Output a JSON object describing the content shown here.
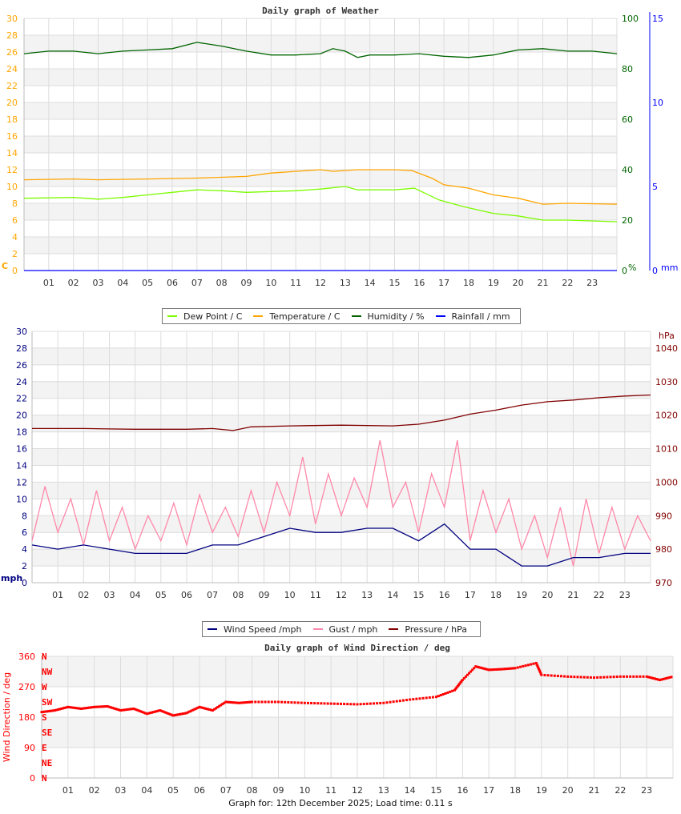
{
  "footer": {
    "text": "Graph for: 12th December 2025; Load time: 0.11 s"
  },
  "legends": {
    "weather": [
      {
        "label": "Dew Point / C",
        "color": "#7cfc00"
      },
      {
        "label": "Temperature / C",
        "color": "#ffa500"
      },
      {
        "label": "Humidity / %",
        "color": "#006400"
      },
      {
        "label": "Rainfall / mm",
        "color": "#0000ff"
      }
    ],
    "wind": [
      {
        "label": "Wind Speed /mph",
        "color": "#000080"
      },
      {
        "label": "Gust / mph",
        "color": "#ff88aa"
      },
      {
        "label": "Pressure / hPa",
        "color": "#800000"
      }
    ]
  },
  "chart_data": [
    {
      "type": "line",
      "title": "Daily graph of Weather",
      "x_ticks": [
        "01",
        "02",
        "03",
        "04",
        "05",
        "06",
        "07",
        "08",
        "09",
        "10",
        "11",
        "12",
        "13",
        "14",
        "15",
        "16",
        "17",
        "18",
        "19",
        "20",
        "21",
        "22",
        "23"
      ],
      "xlim": [
        0,
        24
      ],
      "grid": true,
      "legend_placement": "bottom",
      "y_left": {
        "unit": "C",
        "lim": [
          0,
          30
        ],
        "ticks": [
          "0",
          "2",
          "4",
          "6",
          "8",
          "10",
          "12",
          "14",
          "16",
          "18",
          "20",
          "22",
          "24",
          "26",
          "28",
          "30"
        ],
        "color": "#ffa500"
      },
      "y_right": {
        "unit": "%",
        "lim": [
          0,
          100
        ],
        "ticks": [
          "0",
          "20",
          "40",
          "60",
          "80",
          "100"
        ],
        "color": "#006400"
      },
      "y_right2": {
        "unit": "mm",
        "lim": [
          0,
          15
        ],
        "ticks": [
          "0",
          "5",
          "10",
          "15"
        ],
        "color": "#0000ff"
      },
      "series": [
        {
          "name": "Temperature / C",
          "axis": "left",
          "color": "#ffa500",
          "x": [
            0,
            2,
            3,
            5,
            7,
            9,
            10,
            11,
            12,
            12.5,
            13.5,
            15,
            15.7,
            16.5,
            17,
            18,
            19,
            20,
            21,
            22,
            24
          ],
          "y": [
            10.8,
            10.9,
            10.8,
            10.9,
            11.0,
            11.2,
            11.6,
            11.8,
            12.0,
            11.8,
            12.0,
            12.0,
            11.9,
            11.0,
            10.2,
            9.8,
            9.0,
            8.6,
            7.9,
            8.0,
            7.9
          ]
        },
        {
          "name": "Dew Point / C",
          "axis": "left",
          "color": "#7cfc00",
          "x": [
            0,
            2,
            3,
            4,
            5,
            6,
            7,
            8,
            9,
            10,
            11,
            12,
            13,
            13.5,
            15,
            15.8,
            16.8,
            17.8,
            19,
            20,
            21,
            22,
            24
          ],
          "y": [
            8.6,
            8.7,
            8.5,
            8.7,
            9.0,
            9.3,
            9.6,
            9.5,
            9.3,
            9.4,
            9.5,
            9.7,
            10.0,
            9.6,
            9.6,
            9.8,
            8.4,
            7.6,
            6.8,
            6.5,
            6.0,
            6.0,
            5.8
          ]
        },
        {
          "name": "Humidity / %",
          "axis": "right",
          "color": "#006400",
          "x": [
            0,
            1,
            2,
            3,
            4,
            5,
            6,
            7,
            8,
            9,
            10,
            11,
            12,
            12.5,
            13,
            13.5,
            14,
            15,
            16,
            17,
            18,
            19,
            20,
            21,
            22,
            23,
            24
          ],
          "y": [
            86,
            87,
            87,
            86,
            87,
            87.5,
            88,
            90.5,
            89,
            87,
            85.5,
            85.5,
            86,
            88,
            87,
            84.5,
            85.5,
            85.5,
            86,
            85,
            84.5,
            85.5,
            87.5,
            88,
            87,
            87,
            86
          ]
        },
        {
          "name": "Rainfall / mm",
          "axis": "right2",
          "color": "#0000ff",
          "x": [
            0,
            24
          ],
          "y": [
            0,
            0
          ]
        }
      ]
    },
    {
      "type": "line",
      "title": "",
      "x_ticks": [
        "01",
        "02",
        "03",
        "04",
        "05",
        "06",
        "07",
        "08",
        "09",
        "10",
        "11",
        "12",
        "13",
        "14",
        "15",
        "16",
        "17",
        "18",
        "19",
        "20",
        "21",
        "22",
        "23"
      ],
      "xlim": [
        0,
        24
      ],
      "grid": true,
      "legend_placement": "bottom",
      "y_left": {
        "unit": "mph",
        "lim": [
          0,
          30
        ],
        "ticks": [
          "0",
          "2",
          "4",
          "6",
          "8",
          "10",
          "12",
          "14",
          "16",
          "18",
          "20",
          "22",
          "24",
          "26",
          "28",
          "30"
        ],
        "color": "#000080"
      },
      "y_right": {
        "unit": "hPa",
        "lim": [
          970,
          1045
        ],
        "ticks": [
          "970",
          "980",
          "990",
          "1000",
          "1010",
          "1020",
          "1030",
          "1040"
        ],
        "color": "#800000"
      },
      "series": [
        {
          "name": "Gust / mph",
          "axis": "left",
          "color": "#ff88aa",
          "x": [
            0,
            0.5,
            1,
            1.5,
            2,
            2.5,
            3,
            3.5,
            4,
            4.5,
            5,
            5.5,
            6,
            6.5,
            7,
            7.5,
            8,
            8.5,
            9,
            9.5,
            10,
            10.5,
            11,
            11.5,
            12,
            12.5,
            13,
            13.5,
            14,
            14.5,
            15,
            15.5,
            16,
            16.5,
            17,
            17.5,
            18,
            18.5,
            19,
            19.5,
            20,
            20.5,
            21,
            21.5,
            22,
            22.5,
            23,
            23.5,
            24
          ],
          "y": [
            5,
            11.5,
            6,
            10,
            4.5,
            11,
            5,
            9,
            4,
            8,
            5,
            9.5,
            4.5,
            10.5,
            6,
            9,
            5.5,
            11,
            6,
            12,
            8,
            15,
            7,
            13,
            8,
            12.5,
            9,
            17,
            9,
            12,
            6,
            13,
            9,
            17,
            5,
            11,
            6,
            10,
            4,
            8,
            3,
            9,
            2,
            10,
            3.5,
            9,
            4,
            8,
            5
          ]
        },
        {
          "name": "Wind Speed /mph",
          "axis": "left",
          "color": "#000080",
          "x": [
            0,
            1,
            2,
            3,
            4,
            5,
            6,
            7,
            8,
            9,
            10,
            11,
            12,
            13,
            14,
            15,
            16,
            17,
            18,
            19,
            20,
            21,
            22,
            23,
            24
          ],
          "y": [
            4.5,
            4,
            4.5,
            4,
            3.5,
            3.5,
            3.5,
            4.5,
            4.5,
            5.5,
            6.5,
            6,
            6,
            6.5,
            6.5,
            5,
            7,
            4,
            4,
            2,
            2,
            3,
            3,
            3.5,
            3.5
          ]
        },
        {
          "name": "Pressure / hPa",
          "axis": "right",
          "color": "#800000",
          "x": [
            0,
            2,
            4,
            6,
            7,
            7.8,
            8.5,
            10,
            12,
            14,
            15,
            16,
            17,
            18,
            19,
            20,
            21,
            22,
            23,
            24
          ],
          "y": [
            1016,
            1016,
            1015.8,
            1015.8,
            1016,
            1015.4,
            1016.5,
            1016.8,
            1017,
            1016.8,
            1017.3,
            1018.5,
            1020.3,
            1021.5,
            1023,
            1024,
            1024.5,
            1025.2,
            1025.7,
            1026
          ]
        }
      ]
    },
    {
      "type": "scatter",
      "title": "Daily graph of Wind Direction / deg",
      "ylabel": "Wind Direction / deg",
      "x_ticks": [
        "01",
        "02",
        "03",
        "04",
        "05",
        "06",
        "07",
        "08",
        "09",
        "10",
        "11",
        "12",
        "13",
        "14",
        "15",
        "16",
        "17",
        "18",
        "19",
        "20",
        "21",
        "22",
        "23"
      ],
      "xlim": [
        0,
        24
      ],
      "grid": true,
      "y_left": {
        "unit": "deg",
        "lim": [
          0,
          360
        ],
        "ticks": [
          "0",
          "90",
          "180",
          "270",
          "360"
        ],
        "color": "#ff0000"
      },
      "compass": [
        "N",
        "NE",
        "E",
        "SE",
        "S",
        "SW",
        "W",
        "NW",
        "N"
      ],
      "series": [
        {
          "name": "Wind Direction / deg",
          "axis": "left",
          "color": "#ff0000",
          "x": [
            0,
            0.5,
            1,
            1.5,
            2,
            2.5,
            3,
            3.5,
            4,
            4.5,
            5,
            5.5,
            6,
            6.5,
            7,
            7.5,
            8,
            9,
            10,
            11,
            12,
            13,
            14,
            15,
            15.7,
            16,
            16.5,
            17,
            17.5,
            18,
            18.8,
            19,
            20,
            21,
            22,
            23,
            23.5,
            24
          ],
          "y": [
            195,
            200,
            210,
            205,
            210,
            212,
            200,
            205,
            190,
            200,
            185,
            192,
            210,
            200,
            225,
            222,
            225,
            225,
            222,
            220,
            218,
            222,
            232,
            240,
            260,
            290,
            330,
            320,
            322,
            325,
            340,
            305,
            300,
            297,
            300,
            300,
            290,
            300
          ]
        }
      ]
    }
  ]
}
